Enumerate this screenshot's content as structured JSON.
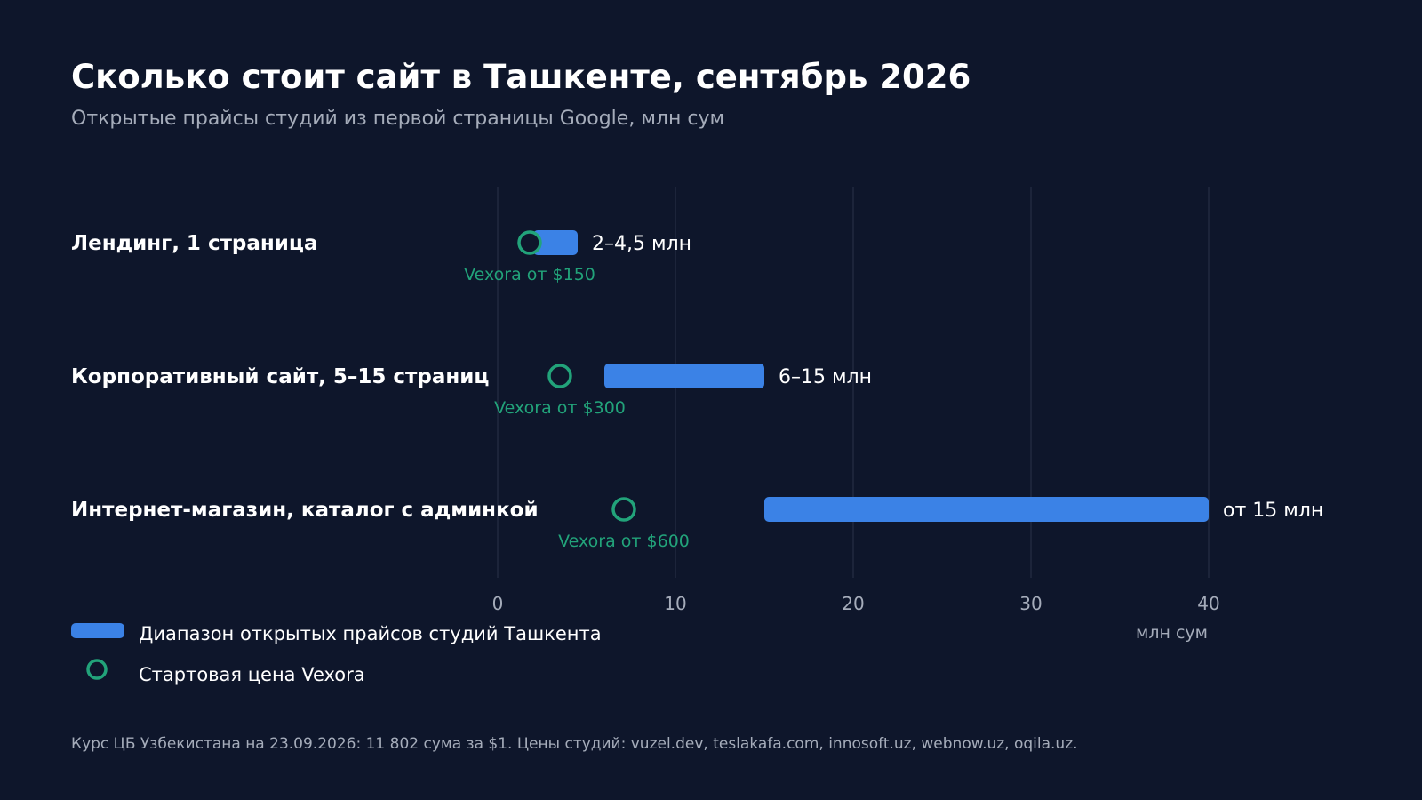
{
  "title": "Сколько стоит сайт в Ташкенте, сентябрь 2026",
  "subtitle": "Открытые прайсы студий из первой страницы Google, млн сум",
  "footnote": "Курс ЦБ Узбекистана на 23.09.2026: 11 802 сума за $1. Цены студий: vuzel.dev, teslakafa.com, innosoft.uz, webnow.uz, oqila.uz.",
  "colors": {
    "background": "#0e162b",
    "bar": "#3b82e6",
    "marker": "#22a37a",
    "grid": "#2a3348",
    "text": "#ffffff",
    "muted": "#a5acba"
  },
  "chart_data": {
    "type": "bar",
    "orientation": "horizontal",
    "categories": [
      "Лендинг, 1 страница",
      "Корпоративный сайт, 5–15 страниц",
      "Интернет-магазин, каталог с админкой"
    ],
    "series": [
      {
        "name": "Диапазон открытых прайсов студий Ташкента",
        "ranges": [
          [
            2,
            4.5
          ],
          [
            6,
            15
          ],
          [
            15,
            40
          ]
        ],
        "labels": [
          "2–4,5 млн",
          "6–15 млн",
          "от 15 млн"
        ]
      },
      {
        "name": "Стартовая цена Vexora",
        "values": [
          1.8,
          3.5,
          7.1
        ],
        "labels": [
          "Vexora от $150",
          "Vexora от $300",
          "Vexora от $600"
        ]
      }
    ],
    "xlabel": "млн сум",
    "xlim": [
      0,
      40
    ],
    "xticks": [
      0,
      10,
      20,
      30,
      40
    ],
    "grid": true,
    "legend_position": "bottom-left"
  }
}
